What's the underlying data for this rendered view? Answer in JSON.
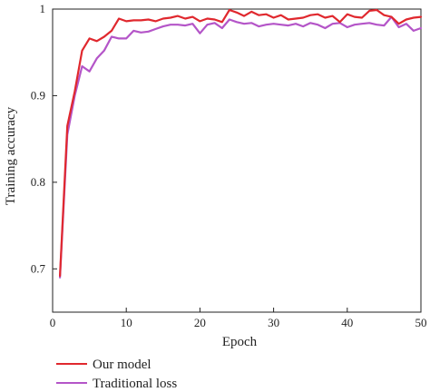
{
  "chart_data": {
    "type": "line",
    "xlabel": "Epoch",
    "ylabel": "Training accuracy",
    "xlim": [
      0,
      50
    ],
    "ylim": [
      0.65,
      1.0
    ],
    "xticks": [
      0,
      10,
      20,
      30,
      40,
      50
    ],
    "yticks": [
      0.7,
      0.8,
      0.9,
      1
    ],
    "ytick_labels": [
      "0.7",
      "0.8",
      "0.9",
      "1"
    ],
    "grid": false,
    "legend_position": "bottom-left",
    "series": [
      {
        "name": "Our model",
        "color": "#e0282e",
        "x": [
          1,
          2,
          3,
          4,
          5,
          6,
          7,
          8,
          9,
          10,
          11,
          12,
          13,
          14,
          15,
          16,
          17,
          18,
          19,
          20,
          21,
          22,
          23,
          24,
          25,
          26,
          27,
          28,
          29,
          30,
          31,
          32,
          33,
          34,
          35,
          36,
          37,
          38,
          39,
          40,
          41,
          42,
          43,
          44,
          45,
          46,
          47,
          48,
          49,
          50
        ],
        "y": [
          0.692,
          0.865,
          0.905,
          0.952,
          0.966,
          0.963,
          0.968,
          0.975,
          0.989,
          0.986,
          0.987,
          0.987,
          0.988,
          0.986,
          0.989,
          0.99,
          0.992,
          0.989,
          0.991,
          0.986,
          0.989,
          0.988,
          0.985,
          0.999,
          0.996,
          0.992,
          0.997,
          0.993,
          0.994,
          0.99,
          0.993,
          0.988,
          0.989,
          0.99,
          0.993,
          0.994,
          0.99,
          0.992,
          0.985,
          0.994,
          0.991,
          0.99,
          0.998,
          0.999,
          0.993,
          0.991,
          0.983,
          0.988,
          0.99,
          0.991
        ]
      },
      {
        "name": "Traditional loss",
        "color": "#b455c8",
        "x": [
          1,
          2,
          3,
          4,
          5,
          6,
          7,
          8,
          9,
          10,
          11,
          12,
          13,
          14,
          15,
          16,
          17,
          18,
          19,
          20,
          21,
          22,
          23,
          24,
          25,
          26,
          27,
          28,
          29,
          30,
          31,
          32,
          33,
          34,
          35,
          36,
          37,
          38,
          39,
          40,
          41,
          42,
          43,
          44,
          45,
          46,
          47,
          48,
          49,
          50
        ],
        "y": [
          0.69,
          0.855,
          0.9,
          0.934,
          0.928,
          0.943,
          0.952,
          0.968,
          0.966,
          0.966,
          0.975,
          0.973,
          0.974,
          0.977,
          0.98,
          0.982,
          0.982,
          0.981,
          0.983,
          0.972,
          0.982,
          0.984,
          0.978,
          0.988,
          0.985,
          0.983,
          0.984,
          0.98,
          0.982,
          0.983,
          0.982,
          0.981,
          0.983,
          0.98,
          0.984,
          0.982,
          0.978,
          0.983,
          0.984,
          0.979,
          0.982,
          0.983,
          0.984,
          0.982,
          0.981,
          0.991,
          0.979,
          0.983,
          0.975,
          0.978
        ]
      }
    ]
  }
}
